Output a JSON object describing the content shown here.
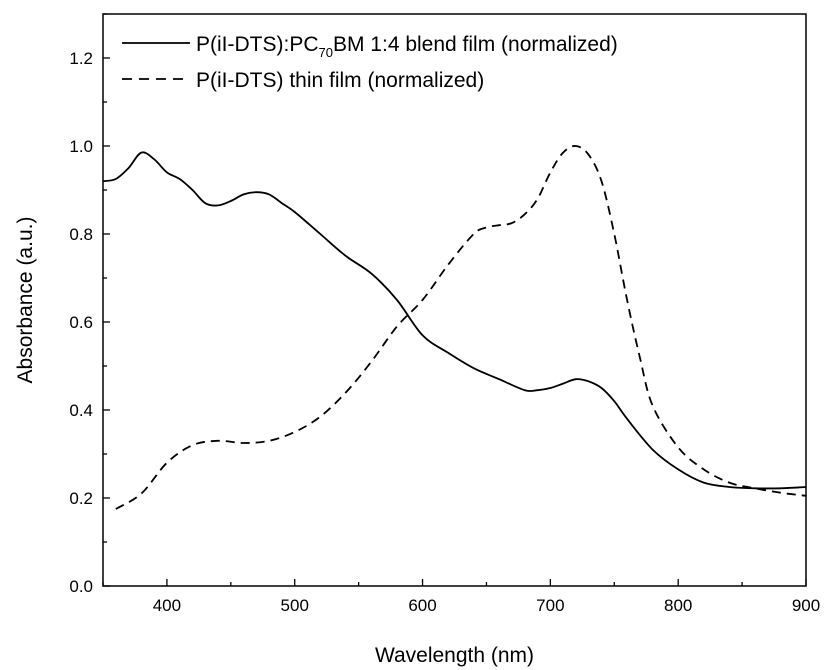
{
  "chart_data": {
    "type": "line",
    "xlabel": "Wavelength (nm)",
    "ylabel": "Absorbance (a.u.)",
    "xlim": [
      350,
      900
    ],
    "ylim": [
      0.0,
      1.3
    ],
    "x_ticks": [
      "400",
      "500",
      "600",
      "700",
      "800",
      "900"
    ],
    "y_ticks": [
      "0.0",
      "0.2",
      "0.4",
      "0.6",
      "0.8",
      "1.0",
      "1.2"
    ],
    "x_tick_values": [
      400,
      500,
      600,
      700,
      800,
      900
    ],
    "y_tick_values": [
      0.0,
      0.2,
      0.4,
      0.6,
      0.8,
      1.0,
      1.2
    ],
    "grid": false,
    "legend_position": "top-left",
    "series": [
      {
        "name": "P(iI-DTS):PC70BM 1:4 blend film (normalized)",
        "name_parts": {
          "before": "P(iI-DTS):PC",
          "sub": "70",
          "after": "BM 1:4 blend film (normalized)"
        },
        "style": "solid",
        "x": [
          350,
          360,
          370,
          380,
          390,
          400,
          410,
          420,
          430,
          440,
          450,
          460,
          470,
          480,
          490,
          500,
          520,
          540,
          560,
          580,
          600,
          620,
          640,
          660,
          680,
          690,
          700,
          710,
          720,
          730,
          740,
          750,
          760,
          780,
          800,
          820,
          840,
          860,
          880,
          900
        ],
        "y": [
          0.92,
          0.925,
          0.95,
          0.985,
          0.97,
          0.94,
          0.925,
          0.9,
          0.87,
          0.865,
          0.875,
          0.89,
          0.895,
          0.89,
          0.87,
          0.85,
          0.8,
          0.75,
          0.71,
          0.65,
          0.57,
          0.53,
          0.495,
          0.47,
          0.445,
          0.445,
          0.45,
          0.46,
          0.47,
          0.465,
          0.45,
          0.42,
          0.38,
          0.31,
          0.265,
          0.235,
          0.225,
          0.222,
          0.222,
          0.225
        ]
      },
      {
        "name": "P(iI-DTS) thin film (normalized)",
        "style": "dashed",
        "x": [
          360,
          380,
          400,
          420,
          440,
          460,
          480,
          500,
          520,
          540,
          560,
          580,
          600,
          620,
          640,
          650,
          660,
          670,
          680,
          690,
          700,
          710,
          720,
          730,
          740,
          750,
          760,
          770,
          780,
          800,
          820,
          840,
          860,
          880,
          900
        ],
        "y": [
          0.175,
          0.21,
          0.28,
          0.32,
          0.33,
          0.325,
          0.33,
          0.35,
          0.385,
          0.44,
          0.51,
          0.59,
          0.65,
          0.73,
          0.8,
          0.815,
          0.82,
          0.825,
          0.845,
          0.88,
          0.94,
          0.985,
          1.0,
          0.98,
          0.92,
          0.8,
          0.65,
          0.52,
          0.41,
          0.315,
          0.265,
          0.235,
          0.222,
          0.212,
          0.205
        ]
      }
    ]
  }
}
